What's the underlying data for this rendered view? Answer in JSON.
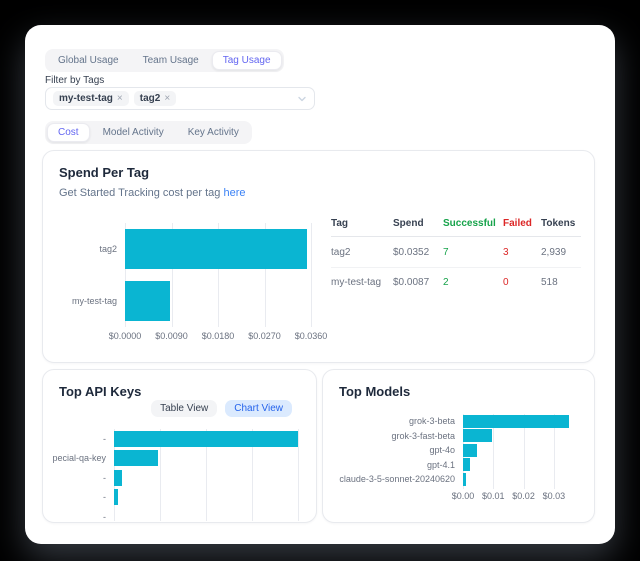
{
  "colors": {
    "bar_cyan": "#0ab5d2",
    "accent_indigo": "#6366f1",
    "success_green": "#16a34a",
    "fail_red": "#dc2626",
    "link_blue": "#3b82f6",
    "chart_view_bg": "#dbeafe",
    "chart_view_text": "#2563eb"
  },
  "usage_tabs": {
    "items": [
      {
        "label": "Global Usage",
        "selected": false
      },
      {
        "label": "Team Usage",
        "selected": false
      },
      {
        "label": "Tag Usage",
        "selected": true
      }
    ]
  },
  "filter": {
    "label": "Filter by Tags",
    "chips": [
      {
        "text": "my-test-tag"
      },
      {
        "text": "tag2"
      }
    ],
    "remove_icon": "×"
  },
  "view_tabs": {
    "items": [
      {
        "label": "Cost",
        "selected": true
      },
      {
        "label": "Model Activity",
        "selected": false
      },
      {
        "label": "Key Activity",
        "selected": false
      }
    ]
  },
  "spend_card": {
    "title": "Spend Per Tag",
    "subtitle_prefix": "Get Started Tracking cost per tag ",
    "subtitle_link": "here"
  },
  "spend_table": {
    "headers": [
      "Tag",
      "Spend",
      "Successful",
      "Failed",
      "Tokens"
    ],
    "rows": [
      {
        "tag": "tag2",
        "spend": "$0.0352",
        "successful": "7",
        "failed": "3",
        "tokens": "2,939"
      },
      {
        "tag": "my-test-tag",
        "spend": "$0.0087",
        "successful": "2",
        "failed": "0",
        "tokens": "518"
      }
    ]
  },
  "api_keys_card": {
    "title": "Top API Keys",
    "table_view_label": "Table View",
    "chart_view_label": "Chart View"
  },
  "models_card": {
    "title": "Top Models"
  },
  "chart_data": [
    {
      "id": "spend-per-tag",
      "type": "bar",
      "orientation": "horizontal",
      "title": "Spend Per Tag",
      "categories": [
        "tag2",
        "my-test-tag"
      ],
      "values": [
        0.0352,
        0.0087
      ],
      "xlim": [
        0,
        0.036
      ],
      "ticks": [
        {
          "label": "$0.0000",
          "value": 0
        },
        {
          "label": "$0.0090",
          "value": 0.009
        },
        {
          "label": "$0.0180",
          "value": 0.018
        },
        {
          "label": "$0.0270",
          "value": 0.027
        },
        {
          "label": "$0.0360",
          "value": 0.036
        }
      ],
      "grid": true,
      "bar_color": "#0ab5d2"
    },
    {
      "id": "top-api-keys",
      "type": "bar",
      "orientation": "horizontal",
      "title": "Top API Keys",
      "categories": [
        "-",
        "pecial-qa-key",
        "-",
        "-",
        "-"
      ],
      "values": [
        1.0,
        0.24,
        0.045,
        0.022,
        0
      ],
      "xlim": [
        0,
        1
      ],
      "ticks": [],
      "gridline_values": [
        0,
        0.25,
        0.5,
        0.75,
        1
      ],
      "grid": true,
      "bar_color": "#0ab5d2",
      "note": "x-axis clipped by card edge; values are fractions of the max bar"
    },
    {
      "id": "top-models",
      "type": "bar",
      "orientation": "horizontal",
      "title": "Top Models",
      "categories": [
        "grok-3-beta",
        "grok-3-fast-beta",
        "gpt-4o",
        "gpt-4.1",
        "claude-3-5-sonnet-20240620"
      ],
      "values": [
        0.035,
        0.0095,
        0.0046,
        0.0023,
        0.0011
      ],
      "xlim": [
        0,
        0.035
      ],
      "ticks": [
        {
          "label": "$0.00",
          "value": 0
        },
        {
          "label": "$0.01",
          "value": 0.01
        },
        {
          "label": "$0.02",
          "value": 0.02
        },
        {
          "label": "$0.03",
          "value": 0.03
        }
      ],
      "grid": true,
      "bar_color": "#0ab5d2"
    }
  ]
}
